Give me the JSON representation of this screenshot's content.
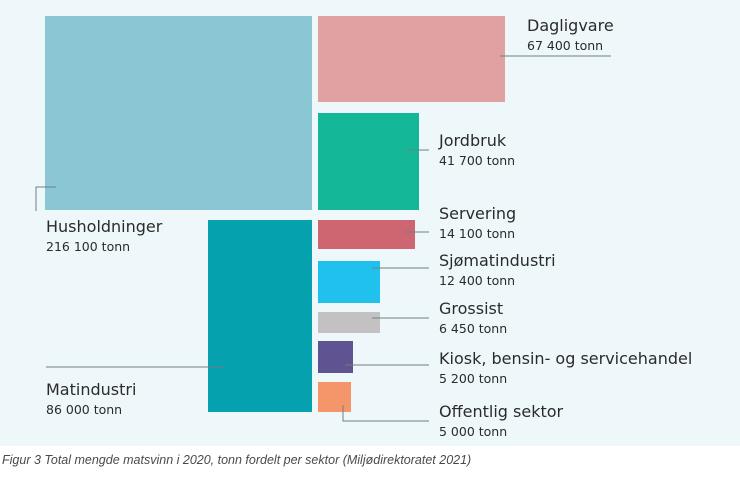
{
  "chart_data": {
    "type": "treemap",
    "unit": "tonn",
    "items": [
      {
        "name": "Husholdninger",
        "value": 216100,
        "value_label": "216 100 tonn",
        "color": "#8ac6d3"
      },
      {
        "name": "Dagligvare",
        "value": 67400,
        "value_label": "67 400 tonn",
        "color": "#e0a1a3"
      },
      {
        "name": "Jordbruk",
        "value": 41700,
        "value_label": "41 700 tonn",
        "color": "#14b899"
      },
      {
        "name": "Servering",
        "value": 14100,
        "value_label": "14 100 tonn",
        "color": "#cd6670"
      },
      {
        "name": "Sjømatindustri",
        "value": 12400,
        "value_label": "12 400 tonn",
        "color": "#20c2ed"
      },
      {
        "name": "Grossist",
        "value": 6450,
        "value_label": "6 450 tonn",
        "color": "#c4c1c2"
      },
      {
        "name": "Kiosk, bensin- og servicehandel",
        "value": 5200,
        "value_label": "5 200 tonn",
        "color": "#5f5392"
      },
      {
        "name": "Offentlig sektor",
        "value": 5000,
        "value_label": "5 000 tonn",
        "color": "#f4956a"
      },
      {
        "name": "Matindustri",
        "value": 86000,
        "value_label": "86 000 tonn",
        "color": "#05a1af"
      }
    ]
  },
  "caption": "Figur 3 Total mengde matsvinn i 2020, tonn fordelt per sektor (Miljødirektoratet 2021)"
}
